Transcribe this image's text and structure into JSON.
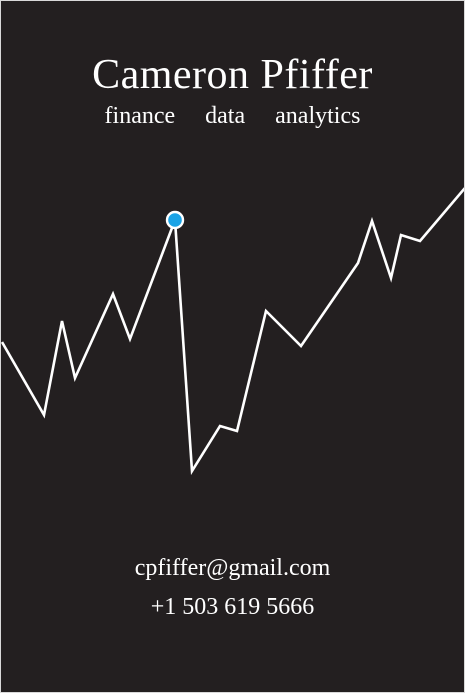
{
  "card": {
    "name": "Cameron Pfiffer",
    "tagline": [
      "finance",
      "data",
      "analytics"
    ],
    "email": "cpfiffer@gmail.com",
    "phone": "+1 503 619 5666",
    "background_color": "#231f20",
    "line_color": "#ffffff",
    "highlight_color": "#1aa3e6",
    "decorative_line_icon": "line-chart-icon",
    "highlight_icon": "dot-marker-icon"
  }
}
